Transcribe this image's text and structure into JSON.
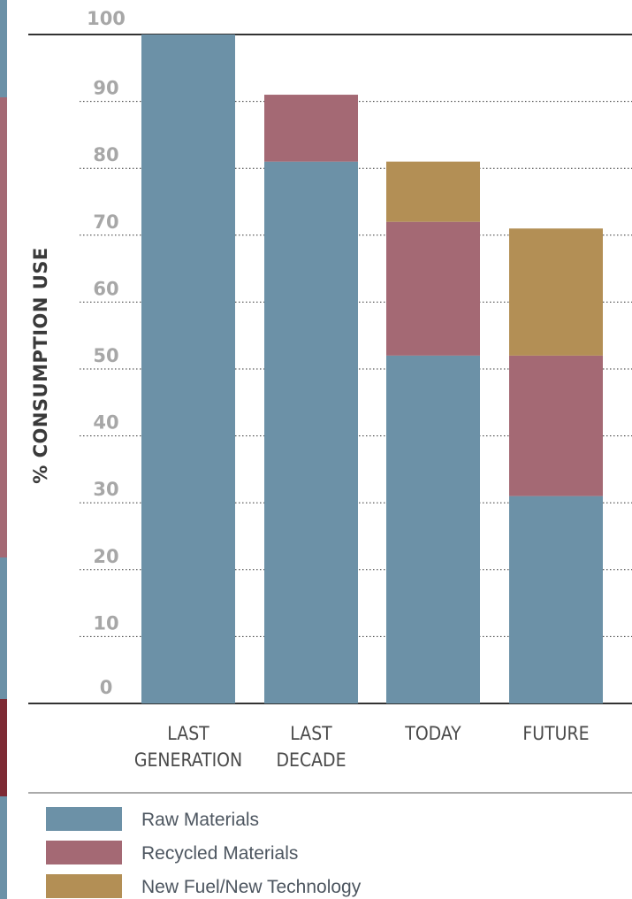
{
  "chart_data": {
    "type": "bar",
    "stacked": true,
    "title": "",
    "xlabel": "",
    "ylabel": "% CONSUMPTION USE",
    "ylim": [
      0,
      100
    ],
    "yticks": [
      "0",
      "10",
      "20",
      "30",
      "40",
      "50",
      "60",
      "70",
      "80",
      "90",
      "100"
    ],
    "grid": "horizontal dotted",
    "legend_position": "bottom",
    "categories": [
      [
        "LAST",
        "GENERATION"
      ],
      [
        "LAST",
        "DECADE"
      ],
      [
        "TODAY"
      ],
      [
        "FUTURE"
      ]
    ],
    "series": [
      {
        "name": "Raw Materials",
        "color": "#6c91a7",
        "values": [
          100,
          81,
          52,
          31
        ]
      },
      {
        "name": "Recycled Materials",
        "color": "#a46974",
        "values": [
          0,
          10,
          20,
          21
        ]
      },
      {
        "name": "New Fuel/New Technology",
        "color": "#b38f55",
        "values": [
          0,
          0,
          9,
          19
        ]
      }
    ]
  },
  "colors": {
    "gridline": "#333333",
    "axis": "#333333",
    "tick_text": "#a7a7a7",
    "edge_strip": [
      "#6c91a7",
      "#a46974",
      "#7d2a34"
    ]
  }
}
